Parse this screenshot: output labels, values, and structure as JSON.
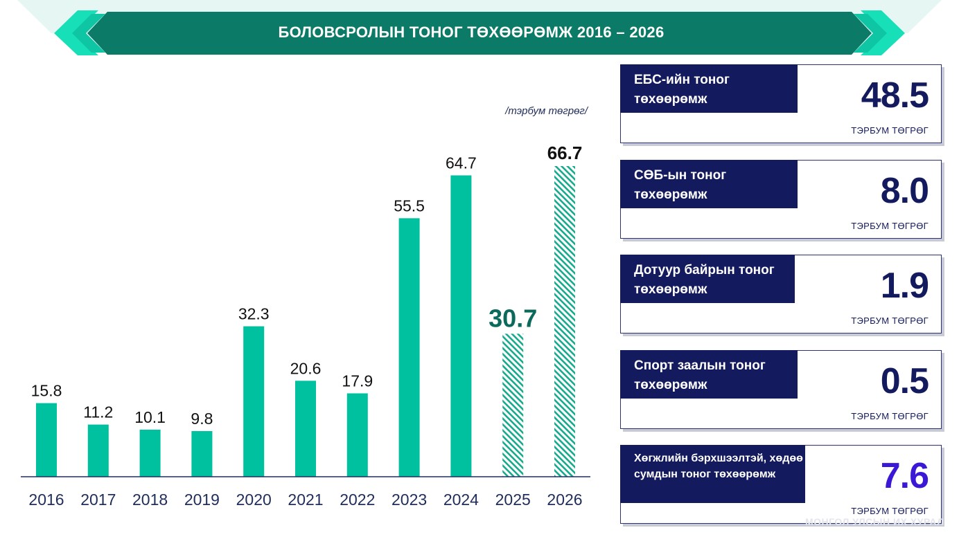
{
  "banner": {
    "title": "БОЛОВСРОЛЫН ТОНОГ ТӨХӨӨРӨМЖ 2016 – 2026"
  },
  "chart_data": {
    "type": "bar",
    "unit_label": "/тэрбум төгрөг/",
    "categories": [
      "2016",
      "2017",
      "2018",
      "2019",
      "2020",
      "2021",
      "2022",
      "2023",
      "2024",
      "2025",
      "2026"
    ],
    "values": [
      15.8,
      11.2,
      10.1,
      9.8,
      32.3,
      20.6,
      17.9,
      55.5,
      64.7,
      30.7,
      66.7
    ],
    "value_labels": [
      "15.8",
      "11.2",
      "10.1",
      "9.8",
      "32.3",
      "20.6",
      "17.9",
      "55.5",
      "64.7",
      "30.7",
      "66.7"
    ],
    "hatched": [
      false,
      false,
      false,
      false,
      false,
      false,
      false,
      false,
      false,
      true,
      true
    ],
    "emphasized_labels": [
      false,
      false,
      false,
      false,
      false,
      false,
      false,
      false,
      false,
      true,
      true
    ],
    "ylim": [
      0,
      75
    ],
    "grid": false,
    "colors": {
      "bar": "#00c19f",
      "hatch": "#16a98c",
      "label_2025": "#0c6a5c",
      "label_2026": "#111111",
      "axis": "#1f2d5a"
    }
  },
  "cards": [
    {
      "label": "ЕБС-ийн тоног төхөөрөмж",
      "value": "48.5",
      "unit": "ТЭРБУМ ТӨГРӨГ"
    },
    {
      "label": "СӨБ-ын тоног төхөөрөмж",
      "value": "8.0",
      "unit": "ТЭРБУМ ТӨГРӨГ"
    },
    {
      "label": "Дотуур байрын тоног төхөөрөмж",
      "value": "1.9",
      "unit": "ТЭРБУМ ТӨГРӨГ"
    },
    {
      "label": "Спорт заалын тоног төхөөрөмж",
      "value": "0.5",
      "unit": "ТЭРБУМ ТӨГРӨГ"
    },
    {
      "label": "Хөгжлийн бэрхшээлтэй, хөдөө сумдын тоног төхөөрөмж",
      "value": "7.6",
      "unit": "ТЭРБУМ ТӨГРӨГ",
      "value_color": "#3b17d6"
    }
  ],
  "watermark": "МОНГОЛ УЛСЫН ИХ ХУРАЛ"
}
